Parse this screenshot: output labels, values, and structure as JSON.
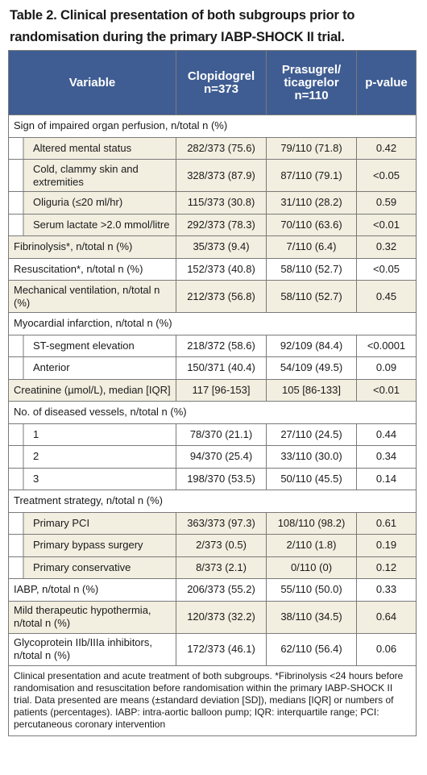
{
  "title": "Table 2. Clinical presentation of both subgroups prior to randomisation during the primary IABP-SHOCK II trial.",
  "table": {
    "headers": [
      "Variable",
      "Clopidogrel\nn=373",
      "Prasugrel/\nticagrelor\nn=110",
      "p-value"
    ],
    "rows": [
      [
        "Sign of impaired organ perfusion, n/total n (%)"
      ],
      [
        "Altered mental status",
        "282/373 (75.6)",
        "79/110 (71.8)",
        "0.42"
      ],
      [
        "Cold, clammy skin and extremities",
        "328/373 (87.9)",
        "87/110 (79.1)",
        "<0.05"
      ],
      [
        "Oliguria (≤20 ml/hr)",
        "115/373 (30.8)",
        "31/110 (28.2)",
        "0.59"
      ],
      [
        "Serum lactate >2.0 mmol/litre",
        "292/373 (78.3)",
        "70/110 (63.6)",
        "<0.01"
      ],
      [
        "Fibrinolysis*, n/total n (%)",
        "35/373 (9.4)",
        "7/110 (6.4)",
        "0.32"
      ],
      [
        "Resuscitation*, n/total n (%)",
        "152/373 (40.8)",
        "58/110 (52.7)",
        "<0.05"
      ],
      [
        "Mechanical ventilation, n/total n (%)",
        "212/373 (56.8)",
        "58/110 (52.7)",
        "0.45"
      ],
      [
        "Myocardial infarction, n/total n (%)"
      ],
      [
        "ST-segment elevation",
        "218/372 (58.6)",
        "92/109 (84.4)",
        "<0.0001"
      ],
      [
        "Anterior",
        "150/371 (40.4)",
        "54/109 (49.5)",
        "0.09"
      ],
      [
        "Creatinine (µmol/L), median [IQR]",
        "117 [96-153]",
        "105 [86-133]",
        "<0.01"
      ],
      [
        "No. of diseased vessels, n/total n (%)"
      ],
      [
        "1",
        "78/370 (21.1)",
        "27/110 (24.5)",
        "0.44"
      ],
      [
        "2",
        "94/370 (25.4)",
        "33/110 (30.0)",
        "0.34"
      ],
      [
        "3",
        "198/370 (53.5)",
        "50/110 (45.5)",
        "0.14"
      ],
      [
        "Treatment strategy, n/total n (%)"
      ],
      [
        "Primary PCI",
        "363/373 (97.3)",
        "108/110 (98.2)",
        "0.61"
      ],
      [
        "Primary bypass surgery",
        "2/373 (0.5)",
        "2/110 (1.8)",
        "0.19"
      ],
      [
        "Primary conservative",
        "8/373 (2.1)",
        "0/110 (0)",
        "0.12"
      ],
      [
        "IABP, n/total n (%)",
        "206/373 (55.2)",
        "55/110 (50.0)",
        "0.33"
      ],
      [
        "Mild therapeutic hypothermia, n/total n (%)",
        "120/373 (32.2)",
        "38/110 (34.5)",
        "0.64"
      ],
      [
        "Glycoprotein IIb/IIIa inhibitors, n/total n (%)",
        "172/373 (46.1)",
        "62/110 (56.4)",
        "0.06"
      ]
    ],
    "footnote": "Clinical presentation and acute treatment of both subgroups. *Fibrinolysis <24 hours before randomisation and resuscitation before randomisation within the primary IABP-SHOCK II trial. Data presented are means (±standard deviation [SD]), medians [IQR] or numbers of patients (percentages). IABP: intra-aortic balloon pump; IQR: interquartile range; PCI: percutaneous coronary intervention"
  }
}
